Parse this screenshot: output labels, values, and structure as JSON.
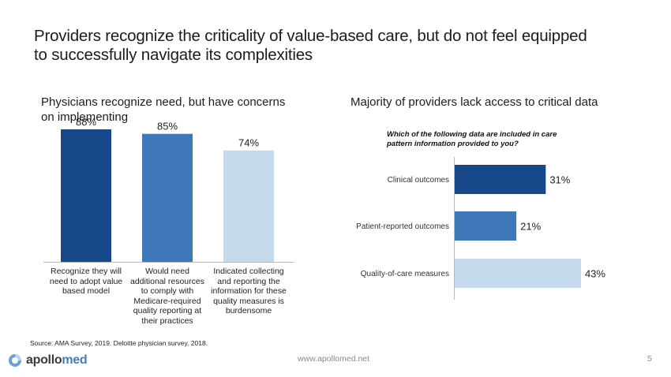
{
  "slide": {
    "title": "Providers recognize the criticality of value-based care, but do not feel equipped to successfully navigate its complexities",
    "left_subhead": "Physicians recognize need, but have concerns on implementing",
    "right_subhead": "Majority of providers lack access to critical data",
    "source": "Source: AMA Survey, 2019. Deloitte physician survey, 2018.",
    "logo": {
      "icon": "swirl-logo-icon",
      "text_part1": "apollo",
      "text_part2": "med"
    },
    "url": "www.apollomed.net",
    "page_number": "5"
  },
  "chart_data": [
    {
      "type": "bar",
      "orientation": "vertical",
      "title": "Physicians recognize need, but have concerns on implementing",
      "categories": [
        "Recognize they will need to adopt value based model",
        "Would need additional resources to comply with Medicare-required quality reporting at their practices",
        "Indicated collecting and reporting the information for these quality measures is burdensome"
      ],
      "values": [
        88,
        85,
        74
      ],
      "data_labels": [
        "88%",
        "85%",
        "74%"
      ],
      "colors": [
        "#17498a",
        "#3f78b8",
        "#c6daee"
      ],
      "ylim": [
        0,
        100
      ],
      "grid": false,
      "xlabel": "",
      "ylabel": ""
    },
    {
      "type": "bar",
      "orientation": "horizontal",
      "title": "Which of the following data are included in care pattern information provided to you?",
      "categories": [
        "Clinical outcomes",
        "Patient-reported outcomes",
        "Quality-of-care measures"
      ],
      "values": [
        31,
        21,
        43
      ],
      "data_labels": [
        "31%",
        "21%",
        "43%"
      ],
      "colors": [
        "#17498a",
        "#3f78b8",
        "#c6daee"
      ],
      "xlim": [
        0,
        50
      ],
      "grid": false,
      "xlabel": "",
      "ylabel": ""
    }
  ]
}
